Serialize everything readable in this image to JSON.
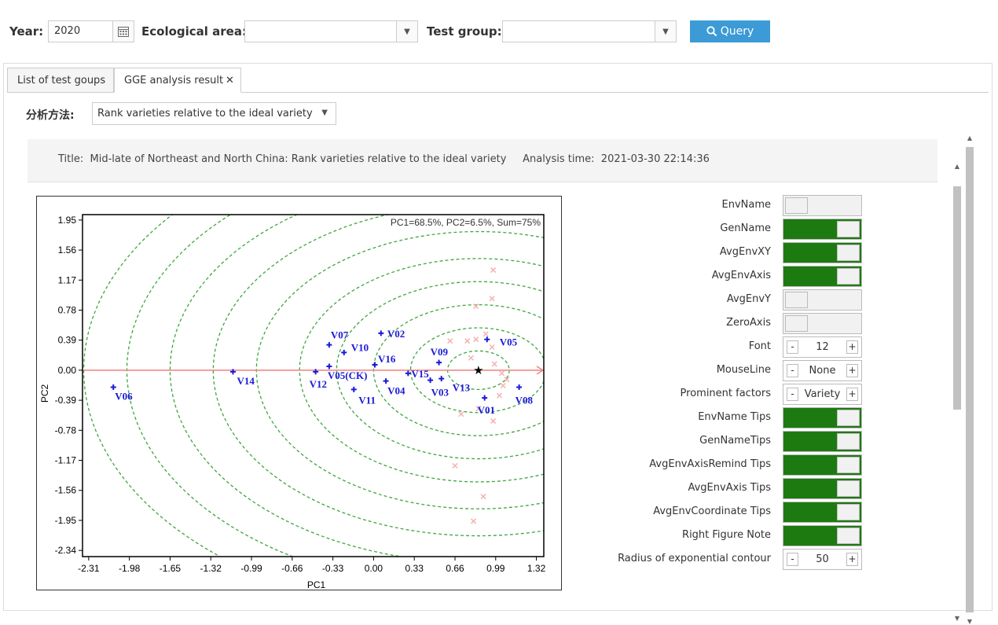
{
  "query": {
    "year_label": "Year:",
    "year_value": "2020",
    "area_label": "Ecological area:",
    "area_value": "",
    "group_label": "Test group:",
    "group_value": "",
    "query_button": "Query"
  },
  "tabs": [
    {
      "label": "List of test goups"
    },
    {
      "label": "GGE analysis result",
      "close": "✕"
    }
  ],
  "analysis": {
    "method_label": "分析方法:",
    "method_value": "Rank varieties relative to the ideal variety",
    "title_text": "Title:  Mid-late of Northeast and North China: Rank varieties relative to the ideal variety     Analysis time:  2021-03-30 22:14:36"
  },
  "chart_data": {
    "type": "scatter",
    "note": "PC1=68.5%,  PC2=6.5%,  Sum=75%",
    "xlabel": "PC1",
    "ylabel": "PC2",
    "xlim": [
      -2.36,
      1.38
    ],
    "ylim": [
      -2.42,
      2.02
    ],
    "xticks": [
      "-2.31",
      "-1.98",
      "-1.65",
      "-1.32",
      "-0.99",
      "-0.66",
      "-0.33",
      "0.00",
      "0.33",
      "0.66",
      "0.99",
      "1.32"
    ],
    "yticks": [
      "1.95",
      "1.56",
      "1.17",
      "0.78",
      "0.39",
      "0.00",
      "-0.39",
      "-0.78",
      "-1.17",
      "-1.56",
      "-1.95",
      "-2.34"
    ],
    "ideal_point": {
      "x": 0.85,
      "y": 0.0
    },
    "genotypes": [
      {
        "name": "V06",
        "x": -2.11,
        "y": -0.22
      },
      {
        "name": "V14",
        "x": -1.14,
        "y": -0.02
      },
      {
        "name": "V12",
        "x": -0.47,
        "y": -0.02
      },
      {
        "name": "V07",
        "x": -0.36,
        "y": 0.33
      },
      {
        "name": "V10",
        "x": -0.24,
        "y": 0.23
      },
      {
        "name": "V05(CK)",
        "x": -0.36,
        "y": 0.05
      },
      {
        "name": "V11",
        "x": -0.16,
        "y": -0.25
      },
      {
        "name": "V02",
        "x": 0.06,
        "y": 0.48
      },
      {
        "name": "V16",
        "x": 0.01,
        "y": 0.07
      },
      {
        "name": "V04",
        "x": 0.1,
        "y": -0.14
      },
      {
        "name": "V15",
        "x": 0.28,
        "y": -0.04
      },
      {
        "name": "V09",
        "x": 0.53,
        "y": 0.1
      },
      {
        "name": "V03",
        "x": 0.46,
        "y": -0.13
      },
      {
        "name": "V13",
        "x": 0.55,
        "y": -0.11
      },
      {
        "name": "V05",
        "x": 0.92,
        "y": 0.4
      },
      {
        "name": "V01",
        "x": 0.9,
        "y": -0.36
      },
      {
        "name": "V08",
        "x": 1.18,
        "y": -0.22
      }
    ],
    "environments": [
      {
        "x": 0.97,
        "y": 1.3
      },
      {
        "x": 0.83,
        "y": 0.83
      },
      {
        "x": 0.96,
        "y": 0.93
      },
      {
        "x": 0.91,
        "y": 0.47
      },
      {
        "x": 0.83,
        "y": 0.4
      },
      {
        "x": 0.62,
        "y": 0.38
      },
      {
        "x": 0.76,
        "y": 0.38
      },
      {
        "x": 0.96,
        "y": 0.3
      },
      {
        "x": 0.79,
        "y": 0.16
      },
      {
        "x": 0.98,
        "y": 0.08
      },
      {
        "x": 1.04,
        "y": -0.04
      },
      {
        "x": 1.08,
        "y": -0.12
      },
      {
        "x": 1.05,
        "y": -0.2
      },
      {
        "x": 1.02,
        "y": -0.33
      },
      {
        "x": 0.85,
        "y": -0.5
      },
      {
        "x": 0.97,
        "y": -0.66
      },
      {
        "x": 0.71,
        "y": -0.57
      },
      {
        "x": 0.66,
        "y": -1.24
      },
      {
        "x": 0.89,
        "y": -1.64
      },
      {
        "x": 0.81,
        "y": -1.96
      }
    ],
    "contour_radii": [
      0.25,
      0.55,
      0.85,
      1.15,
      1.45,
      1.8,
      2.15,
      2.5,
      2.85,
      3.2
    ],
    "colors": {
      "genotype": "#1a1ad6",
      "environment": "#f4b2b2",
      "contour": "#3fa63f",
      "axis_line": "#f08c8c"
    }
  },
  "options": [
    {
      "label": "EnvName",
      "type": "toggle",
      "on": false
    },
    {
      "label": "GenName",
      "type": "toggle",
      "on": true
    },
    {
      "label": "AvgEnvXY",
      "type": "toggle",
      "on": true
    },
    {
      "label": "AvgEnvAxis",
      "type": "toggle",
      "on": true
    },
    {
      "label": "AvgEnvY",
      "type": "toggle",
      "on": false
    },
    {
      "label": "ZeroAxis",
      "type": "toggle",
      "on": false
    },
    {
      "label": "Font",
      "type": "stepper",
      "value": "12"
    },
    {
      "label": "MouseLine",
      "type": "stepper",
      "value": "None"
    },
    {
      "label": "Prominent factors",
      "type": "stepper",
      "value": "Variety"
    },
    {
      "label": "EnvName Tips",
      "type": "toggle",
      "on": true
    },
    {
      "label": "GenNameTips",
      "type": "toggle",
      "on": true
    },
    {
      "label": "AvgEnvAxisRemind Tips",
      "type": "toggle",
      "on": true
    },
    {
      "label": "AvgEnvAxis Tips",
      "type": "toggle",
      "on": true
    },
    {
      "label": "AvgEnvCoordinate Tips",
      "type": "toggle",
      "on": true
    },
    {
      "label": "Right Figure Note",
      "type": "toggle",
      "on": true
    },
    {
      "label": "Radius of exponential contour",
      "type": "stepper",
      "value": "50"
    }
  ],
  "stepper_minus": "-",
  "stepper_plus": "+"
}
